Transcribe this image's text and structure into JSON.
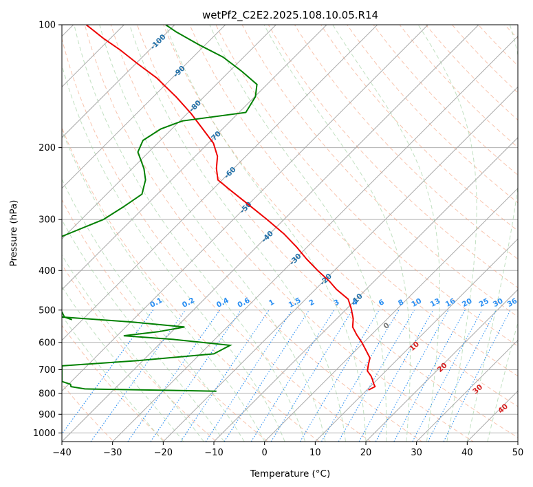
{
  "chart_data": {
    "type": "skew-t",
    "title": "wetPf2_C2E2.2025.108.10.05.R14",
    "xlabel": "Temperature (°C)",
    "ylabel": "Pressure (hPa)",
    "xlim": [
      -40,
      50
    ],
    "ylim": [
      1050,
      100
    ],
    "x_ticks": [
      -40,
      -30,
      -20,
      -10,
      0,
      10,
      20,
      30,
      40,
      50
    ],
    "y_ticks": [
      100,
      200,
      300,
      400,
      500,
      600,
      700,
      800,
      900,
      1000
    ],
    "y_scale": "log",
    "grid": true,
    "temperature_color": "#ee0000",
    "dewpoint_color": "#008000",
    "mixing_ratio_color": "#2b8ff2",
    "isotherm_label_color": "#2270a8",
    "temperature_profile": [
      {
        "p": 785,
        "t": 20.5
      },
      {
        "p": 770,
        "t": 21.8
      },
      {
        "p": 755,
        "t": 21.5
      },
      {
        "p": 740,
        "t": 21.3
      },
      {
        "p": 725,
        "t": 21.0
      },
      {
        "p": 705,
        "t": 20.3
      },
      {
        "p": 680,
        "t": 20.5
      },
      {
        "p": 655,
        "t": 20.8
      },
      {
        "p": 630,
        "t": 20.1
      },
      {
        "p": 600,
        "t": 19.2
      },
      {
        "p": 575,
        "t": 18.2
      },
      {
        "p": 550,
        "t": 17.4
      },
      {
        "p": 525,
        "t": 17.5
      },
      {
        "p": 495,
        "t": 17.1
      },
      {
        "p": 470,
        "t": 16.5
      },
      {
        "p": 445,
        "t": 14.2
      },
      {
        "p": 425,
        "t": 12.8
      },
      {
        "p": 400,
        "t": 10.5
      },
      {
        "p": 375,
        "t": 8.3
      },
      {
        "p": 350,
        "t": 6.3
      },
      {
        "p": 325,
        "t": 3.8
      },
      {
        "p": 300,
        "t": 0.5
      },
      {
        "p": 275,
        "t": -3.3
      },
      {
        "p": 255,
        "t": -6.6
      },
      {
        "p": 240,
        "t": -9.2
      },
      {
        "p": 225,
        "t": -9.5
      },
      {
        "p": 210,
        "t": -9.3
      },
      {
        "p": 195,
        "t": -10.1
      },
      {
        "p": 180,
        "t": -12.2
      },
      {
        "p": 165,
        "t": -14.5
      },
      {
        "p": 150,
        "t": -17.5
      },
      {
        "p": 135,
        "t": -21.3
      },
      {
        "p": 125,
        "t": -24.9
      },
      {
        "p": 115,
        "t": -28.6
      },
      {
        "p": 108,
        "t": -31.8
      },
      {
        "p": 100,
        "t": -35.2
      }
    ],
    "dewpoint_profile": [
      {
        "p": 790,
        "t": -9.5
      },
      {
        "p": 780,
        "t": -35.5
      },
      {
        "p": 770,
        "t": -38.2
      },
      {
        "p": 760,
        "t": -38.3
      },
      {
        "p": 748,
        "t": -40
      },
      {
        "p": 685,
        "t": -40
      },
      {
        "p": 665,
        "t": -25.0
      },
      {
        "p": 640,
        "t": -10.0
      },
      {
        "p": 610,
        "t": -6.8
      },
      {
        "p": 590,
        "t": -18.0
      },
      {
        "p": 578,
        "t": -27.8
      },
      {
        "p": 565,
        "t": -21.0
      },
      {
        "p": 550,
        "t": -15.8
      },
      {
        "p": 535,
        "t": -26.0
      },
      {
        "p": 520,
        "t": -40
      }
    ],
    "dewpoint_upper_profile": [
      {
        "p": 330,
        "t": -40
      },
      {
        "p": 300,
        "t": -31.8
      },
      {
        "p": 280,
        "t": -28.0
      },
      {
        "p": 260,
        "t": -24.2
      },
      {
        "p": 240,
        "t": -23.5
      },
      {
        "p": 225,
        "t": -23.8
      },
      {
        "p": 205,
        "t": -25.0
      },
      {
        "p": 192,
        "t": -24.0
      },
      {
        "p": 180,
        "t": -20.5
      },
      {
        "p": 172,
        "t": -16.2
      },
      {
        "p": 164,
        "t": -3.7
      },
      {
        "p": 150,
        "t": -1.8
      },
      {
        "p": 140,
        "t": -1.5
      },
      {
        "p": 130,
        "t": -4.5
      },
      {
        "p": 120,
        "t": -8.2
      },
      {
        "p": 112,
        "t": -12.9
      },
      {
        "p": 104,
        "t": -17.5
      },
      {
        "p": 100,
        "t": -19.5
      }
    ],
    "mixing_ratio_labels": [
      "0.1",
      "0.2",
      "0.4",
      "0.6",
      "1",
      "1.5",
      "2",
      "3",
      "4",
      "6",
      "8",
      "10",
      "13",
      "16",
      "20",
      "25",
      "30",
      "36"
    ],
    "mixing_ratio_values": [
      0.1,
      0.2,
      0.4,
      0.6,
      1,
      1.5,
      2,
      3,
      4,
      6,
      8,
      10,
      13,
      16,
      20,
      25,
      30,
      36
    ],
    "isotherm_labels": [
      "-100",
      "-90",
      "-80",
      "-70",
      "-60",
      "-50",
      "-40",
      "-30",
      "-20",
      "-10"
    ],
    "moist_adiabat_labels": [
      "0",
      "10",
      "20",
      "30",
      "40"
    ]
  }
}
